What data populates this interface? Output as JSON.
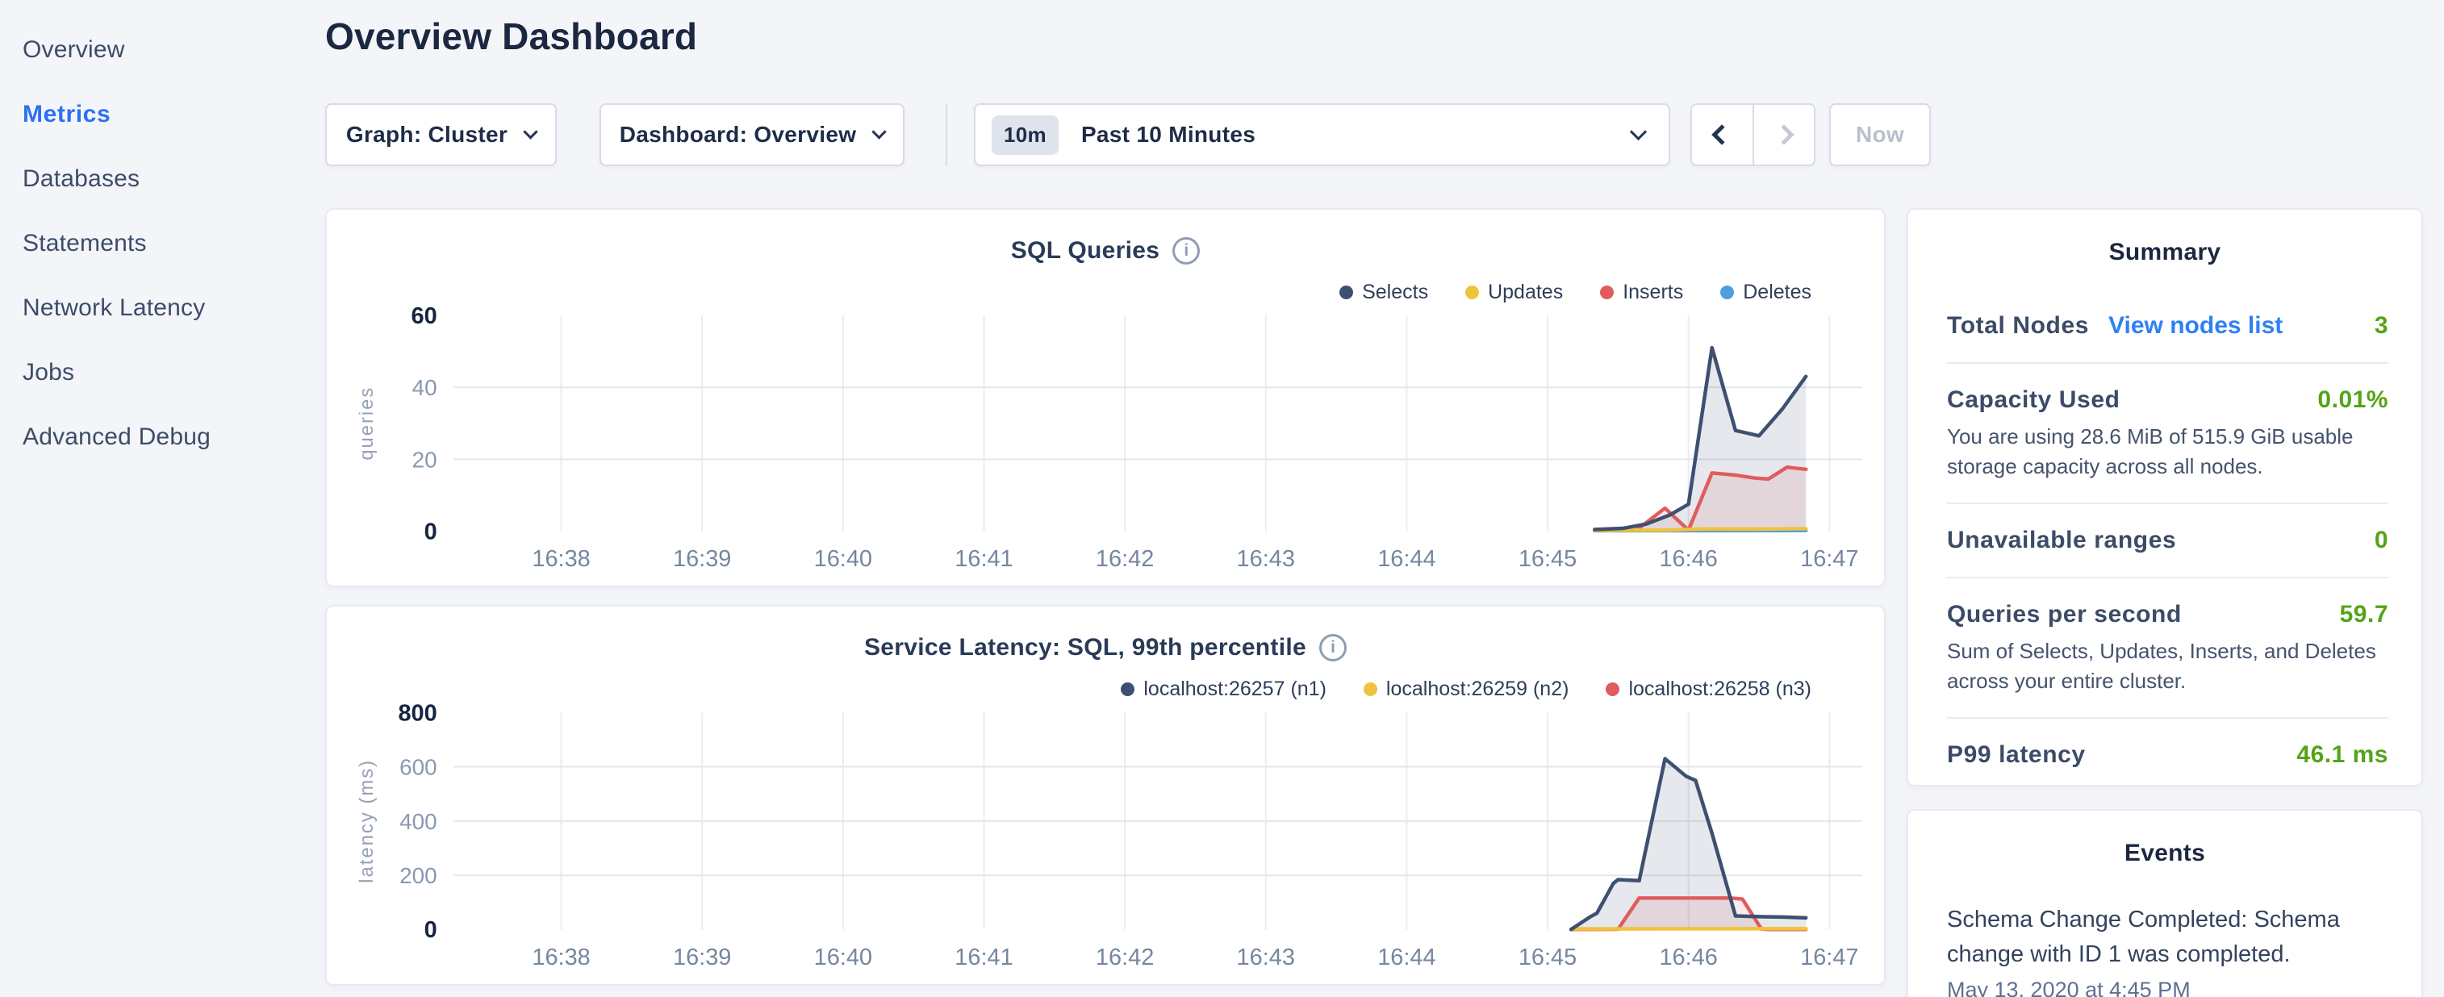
{
  "colors": {
    "accent_blue": "#2b72f2",
    "link_blue": "#2f80f5",
    "value_green": "#54a417"
  },
  "sidebar": {
    "items": [
      {
        "label": "Overview",
        "active": false
      },
      {
        "label": "Metrics",
        "active": true
      },
      {
        "label": "Databases",
        "active": false
      },
      {
        "label": "Statements",
        "active": false
      },
      {
        "label": "Network Latency",
        "active": false
      },
      {
        "label": "Jobs",
        "active": false
      },
      {
        "label": "Advanced Debug",
        "active": false
      }
    ]
  },
  "header": {
    "title": "Overview Dashboard"
  },
  "controls": {
    "graph_dropdown": "Graph: Cluster",
    "dashboard_dropdown": "Dashboard: Overview",
    "time_badge": "10m",
    "time_label": "Past 10 Minutes",
    "now_button": "Now"
  },
  "summary": {
    "title": "Summary",
    "rows": [
      {
        "label": "Total Nodes",
        "link": "View nodes list",
        "value": "3"
      },
      {
        "label": "Capacity Used",
        "value": "0.01%",
        "description": "You are using 28.6 MiB of 515.9 GiB usable storage capacity across all nodes."
      },
      {
        "label": "Unavailable ranges",
        "value": "0"
      },
      {
        "label": "Queries per second",
        "value": "59.7",
        "description": "Sum of Selects, Updates, Inserts, and Deletes across your entire cluster."
      },
      {
        "label": "P99 latency",
        "value": "46.1 ms"
      }
    ]
  },
  "events": {
    "title": "Events",
    "items": [
      {
        "text": "Schema Change Completed: Schema change with ID 1 was completed.",
        "timestamp": "May 13, 2020 at 4:45 PM"
      }
    ]
  },
  "chart_data": [
    {
      "type": "line",
      "title": "SQL Queries",
      "ylabel": "queries",
      "ylim": [
        0,
        60
      ],
      "yticks": [
        0,
        20,
        40,
        60
      ],
      "grid": "on",
      "legend_position": "top-right",
      "x_unit": "seconds since 16:38:00",
      "x_domain_seconds": [
        -46,
        554
      ],
      "xtick_interval_seconds": 60,
      "xtick_labels": [
        "16:38",
        "16:39",
        "16:40",
        "16:41",
        "16:42",
        "16:43",
        "16:44",
        "16:45",
        "16:46",
        "16:47"
      ],
      "series": [
        {
          "name": "Selects",
          "color": "#3E5071",
          "fill": "rgba(62,80,113,0.13)",
          "points": [
            [
              440,
              0.5
            ],
            [
              452,
              0.8
            ],
            [
              462,
              2
            ],
            [
              472,
              4.5
            ],
            [
              480,
              7.5
            ],
            [
              490,
              51
            ],
            [
              500,
              28
            ],
            [
              510,
              26.5
            ],
            [
              520,
              34
            ],
            [
              530,
              43
            ]
          ]
        },
        {
          "name": "Updates",
          "color": "#EFC33D",
          "fill": "rgba(239,195,61,0.12)",
          "points": [
            [
              440,
              0.3
            ],
            [
              470,
              0.3
            ],
            [
              485,
              0.6
            ],
            [
              510,
              0.6
            ],
            [
              530,
              0.7
            ]
          ]
        },
        {
          "name": "Inserts",
          "color": "#E05C5C",
          "fill": "rgba(224,92,92,0.12)",
          "points": [
            [
              440,
              0.2
            ],
            [
              458,
              0.4
            ],
            [
              470,
              6.4
            ],
            [
              480,
              0.3
            ],
            [
              490,
              16.2
            ],
            [
              500,
              15.6
            ],
            [
              508,
              14.8
            ],
            [
              514,
              14.5
            ],
            [
              522,
              17.8
            ],
            [
              530,
              17.2
            ]
          ]
        },
        {
          "name": "Deletes",
          "color": "#4D9EDE",
          "fill": "rgba(77,158,222,0.12)",
          "points": [
            [
              440,
              0.15
            ],
            [
              530,
              0.2
            ]
          ]
        }
      ]
    },
    {
      "type": "line",
      "title": "Service Latency: SQL, 99th percentile",
      "ylabel": "latency (ms)",
      "ylim": [
        0,
        800
      ],
      "yticks": [
        0,
        200,
        400,
        600,
        800
      ],
      "grid": "on",
      "legend_position": "top-right",
      "x_unit": "seconds since 16:38:00",
      "x_domain_seconds": [
        -46,
        554
      ],
      "xtick_interval_seconds": 60,
      "xtick_labels": [
        "16:38",
        "16:39",
        "16:40",
        "16:41",
        "16:42",
        "16:43",
        "16:44",
        "16:45",
        "16:46",
        "16:47"
      ],
      "series": [
        {
          "name": "localhost:26257 (n1)",
          "color": "#3E5071",
          "fill": "rgba(62,80,113,0.13)",
          "points": [
            [
              430,
              0
            ],
            [
              438,
              46
            ],
            [
              441,
              60
            ],
            [
              448,
              170
            ],
            [
              450,
              184
            ],
            [
              459,
              180
            ],
            [
              470,
              630
            ],
            [
              479,
              565
            ],
            [
              483,
              550
            ],
            [
              490,
              355
            ],
            [
              500,
              50
            ],
            [
              512,
              47
            ],
            [
              520,
              46
            ],
            [
              530,
              43
            ]
          ]
        },
        {
          "name": "localhost:26259 (n2)",
          "color": "#EFC33D",
          "fill": "rgba(239,195,61,0.12)",
          "points": [
            [
              430,
              2
            ],
            [
              530,
              3
            ]
          ]
        },
        {
          "name": "localhost:26258 (n3)",
          "color": "#E05C5C",
          "fill": "rgba(224,92,92,0.12)",
          "points": [
            [
              430,
              0
            ],
            [
              450,
              1
            ],
            [
              459,
              116
            ],
            [
              498,
              116
            ],
            [
              503,
              112
            ],
            [
              511,
              2
            ],
            [
              514,
              0
            ],
            [
              530,
              0
            ]
          ]
        }
      ]
    }
  ]
}
